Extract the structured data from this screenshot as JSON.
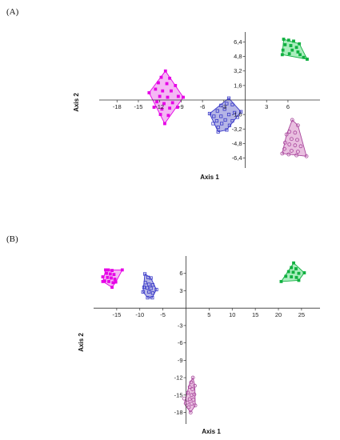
{
  "chart_data": [
    {
      "type": "scatter",
      "panel_label": "(A)",
      "xlabel": "Axis 1",
      "ylabel": "Axis 2",
      "xlim": [
        -20.5,
        10.5
      ],
      "ylim": [
        -7.5,
        7.5
      ],
      "x_ticks": [
        -18,
        -15,
        -12,
        -9,
        -6,
        -3,
        3,
        6
      ],
      "x_tick_labels": [
        "-18",
        "-15",
        "-12",
        "-9",
        "-6",
        "-3",
        "3",
        "6"
      ],
      "y_ticks": [
        6.4,
        4.8,
        3.2,
        1.6,
        -1.6,
        -3.2,
        -4.8,
        -6.4
      ],
      "y_tick_labels": [
        "6,4",
        "4,8",
        "3,2",
        "1,6",
        "-1,6",
        "-3,2",
        "-4,8",
        "-6,4"
      ],
      "grid": false,
      "series": [
        {
          "marker": "filled-square",
          "color": "#e600e6",
          "fill": "#f0a0f0",
          "hull": [
            [
              -11.2,
              3.2
            ],
            [
              -8.7,
              0.3
            ],
            [
              -11.3,
              -2.6
            ],
            [
              -13.5,
              0.8
            ]
          ],
          "points": [
            [
              -11.2,
              3.2
            ],
            [
              -11.8,
              2.5
            ],
            [
              -10.6,
              2.4
            ],
            [
              -12.2,
              1.9
            ],
            [
              -11.0,
              1.8
            ],
            [
              -9.8,
              1.6
            ],
            [
              -12.6,
              1.2
            ],
            [
              -11.6,
              1.0
            ],
            [
              -10.4,
              1.0
            ],
            [
              -13.5,
              0.8
            ],
            [
              -12.0,
              0.4
            ],
            [
              -10.9,
              0.3
            ],
            [
              -9.4,
              0.4
            ],
            [
              -8.7,
              0.3
            ],
            [
              -12.4,
              -0.2
            ],
            [
              -11.4,
              -0.4
            ],
            [
              -10.2,
              -0.3
            ],
            [
              -12.8,
              -0.8
            ],
            [
              -11.7,
              -1.0
            ],
            [
              -10.6,
              -0.9
            ],
            [
              -9.5,
              -0.8
            ],
            [
              -11.9,
              -1.6
            ],
            [
              -10.8,
              -1.7
            ],
            [
              -11.3,
              -2.6
            ]
          ]
        },
        {
          "marker": "open-square",
          "color": "#3838c8",
          "fill": "#9c9cde",
          "hull": [
            [
              -2.3,
              0.2
            ],
            [
              -0.6,
              -1.3
            ],
            [
              -2.6,
              -3.3
            ],
            [
              -3.8,
              -3.5
            ],
            [
              -5.0,
              -1.5
            ]
          ],
          "points": [
            [
              -2.3,
              0.2
            ],
            [
              -2.6,
              -0.4
            ],
            [
              -3.4,
              -0.6
            ],
            [
              -1.8,
              -0.5
            ],
            [
              -2.9,
              -1.0
            ],
            [
              -3.9,
              -1.2
            ],
            [
              -0.6,
              -1.3
            ],
            [
              -5.0,
              -1.5
            ],
            [
              -1.5,
              -1.4
            ],
            [
              -2.3,
              -1.6
            ],
            [
              -4.4,
              -1.8
            ],
            [
              -3.4,
              -1.8
            ],
            [
              -1.1,
              -1.9
            ],
            [
              -4.0,
              -2.3
            ],
            [
              -2.8,
              -2.2
            ],
            [
              -1.8,
              -2.3
            ],
            [
              -3.3,
              -2.6
            ],
            [
              -4.5,
              -2.6
            ],
            [
              -2.2,
              -2.8
            ],
            [
              -3.8,
              -3.0
            ],
            [
              -2.6,
              -3.3
            ],
            [
              -3.8,
              -3.5
            ]
          ]
        },
        {
          "marker": "filled-square",
          "color": "#10b040",
          "fill": "#8ee8a8",
          "hull": [
            [
              5.4,
              6.7
            ],
            [
              7.6,
              6.2
            ],
            [
              8.7,
              4.5
            ],
            [
              5.2,
              5.0
            ]
          ],
          "points": [
            [
              5.4,
              6.7
            ],
            [
              6.1,
              6.6
            ],
            [
              6.8,
              6.5
            ],
            [
              7.6,
              6.2
            ],
            [
              5.6,
              6.1
            ],
            [
              6.4,
              6.0
            ],
            [
              7.2,
              5.8
            ],
            [
              5.3,
              5.5
            ],
            [
              6.6,
              5.5
            ],
            [
              7.4,
              5.3
            ],
            [
              5.2,
              5.0
            ],
            [
              6.2,
              5.1
            ],
            [
              7.7,
              5.0
            ],
            [
              8.2,
              4.7
            ],
            [
              8.7,
              4.5
            ]
          ]
        },
        {
          "marker": "open-circle",
          "color": "#a8469c",
          "fill": "#e2aad6",
          "hull": [
            [
              6.6,
              -2.2
            ],
            [
              7.4,
              -2.8
            ],
            [
              8.6,
              -6.2
            ],
            [
              5.2,
              -5.9
            ],
            [
              5.8,
              -3.8
            ]
          ],
          "points": [
            [
              6.6,
              -2.2
            ],
            [
              7.4,
              -2.8
            ],
            [
              6.2,
              -3.5
            ],
            [
              7.0,
              -3.6
            ],
            [
              5.8,
              -3.8
            ],
            [
              6.5,
              -4.3
            ],
            [
              7.3,
              -4.4
            ],
            [
              5.6,
              -4.7
            ],
            [
              6.2,
              -4.9
            ],
            [
              7.0,
              -5.0
            ],
            [
              7.8,
              -5.1
            ],
            [
              5.5,
              -5.4
            ],
            [
              6.5,
              -5.6
            ],
            [
              7.4,
              -5.7
            ],
            [
              5.2,
              -5.9
            ],
            [
              6.1,
              -6.0
            ],
            [
              7.2,
              -6.1
            ],
            [
              8.6,
              -6.2
            ]
          ]
        }
      ]
    },
    {
      "type": "scatter",
      "panel_label": "(B)",
      "xlabel": "Axis 1",
      "ylabel": "Axis 2",
      "xlim": [
        -20,
        29
      ],
      "ylim": [
        -20,
        9
      ],
      "x_ticks": [
        -15,
        -10,
        -5,
        5,
        10,
        15,
        20,
        25
      ],
      "x_tick_labels": [
        "-15",
        "-10",
        "-5",
        "5",
        "10",
        "15",
        "20",
        "25"
      ],
      "y_ticks": [
        6,
        3,
        -3,
        -6,
        -9,
        -12,
        -15,
        -18
      ],
      "y_tick_labels": [
        "6",
        "3",
        "-3",
        "-6",
        "-9",
        "-12",
        "-15",
        "-18"
      ],
      "grid": false,
      "series": [
        {
          "marker": "filled-square",
          "color": "#e600e6",
          "fill": "#f0a0f0",
          "hull": [
            [
              -17.4,
              6.6
            ],
            [
              -13.8,
              6.6
            ],
            [
              -15.2,
              4.5
            ],
            [
              -16.0,
              3.6
            ],
            [
              -18.0,
              4.6
            ]
          ],
          "points": [
            [
              -17.4,
              6.6
            ],
            [
              -16.8,
              6.6
            ],
            [
              -16.0,
              6.5
            ],
            [
              -13.8,
              6.6
            ],
            [
              -17.2,
              6.0
            ],
            [
              -16.4,
              5.9
            ],
            [
              -15.6,
              5.8
            ],
            [
              -18.0,
              5.4
            ],
            [
              -17.0,
              5.3
            ],
            [
              -16.2,
              5.2
            ],
            [
              -15.4,
              5.0
            ],
            [
              -17.6,
              4.7
            ],
            [
              -16.7,
              4.6
            ],
            [
              -15.8,
              4.4
            ],
            [
              -15.2,
              4.5
            ],
            [
              -18.0,
              4.6
            ],
            [
              -16.0,
              3.6
            ]
          ]
        },
        {
          "marker": "open-square",
          "color": "#3838c8",
          "fill": "#9c9cde",
          "hull": [
            [
              -8.9,
              5.9
            ],
            [
              -7.6,
              5.2
            ],
            [
              -6.4,
              3.2
            ],
            [
              -7.3,
              1.8
            ],
            [
              -8.3,
              1.8
            ],
            [
              -9.3,
              2.8
            ]
          ],
          "points": [
            [
              -8.9,
              5.9
            ],
            [
              -8.2,
              5.3
            ],
            [
              -7.6,
              5.2
            ],
            [
              -8.8,
              4.4
            ],
            [
              -8.0,
              4.1
            ],
            [
              -7.2,
              4.0
            ],
            [
              -9.1,
              3.6
            ],
            [
              -8.4,
              3.5
            ],
            [
              -7.6,
              3.4
            ],
            [
              -6.4,
              3.2
            ],
            [
              -9.3,
              2.8
            ],
            [
              -8.0,
              2.8
            ],
            [
              -7.2,
              2.6
            ],
            [
              -8.3,
              1.8
            ],
            [
              -7.3,
              1.8
            ]
          ]
        },
        {
          "marker": "filled-square",
          "color": "#10b040",
          "fill": "#8ee8a8",
          "hull": [
            [
              23.3,
              7.8
            ],
            [
              25.6,
              6.1
            ],
            [
              24.4,
              4.8
            ],
            [
              20.6,
              4.6
            ]
          ],
          "points": [
            [
              23.3,
              7.8
            ],
            [
              22.8,
              7.0
            ],
            [
              23.8,
              6.8
            ],
            [
              22.2,
              6.3
            ],
            [
              23.2,
              6.2
            ],
            [
              24.4,
              6.0
            ],
            [
              25.6,
              6.1
            ],
            [
              21.6,
              5.5
            ],
            [
              22.8,
              5.4
            ],
            [
              23.9,
              5.3
            ],
            [
              20.6,
              4.6
            ],
            [
              24.4,
              4.8
            ]
          ]
        },
        {
          "marker": "open-circle",
          "color": "#a8469c",
          "fill": "#e2aad6",
          "hull": [
            [
              1.5,
              -12.0
            ],
            [
              1.9,
              -13.4
            ],
            [
              2.0,
              -16.8
            ],
            [
              1.0,
              -18.0
            ],
            [
              -0.4,
              -16.5
            ],
            [
              0.8,
              -13.0
            ]
          ],
          "points": [
            [
              1.5,
              -12.0
            ],
            [
              1.1,
              -12.8
            ],
            [
              1.9,
              -13.4
            ],
            [
              0.8,
              -13.6
            ],
            [
              1.4,
              -14.0
            ],
            [
              0.4,
              -14.6
            ],
            [
              1.2,
              -15.0
            ],
            [
              1.8,
              -14.9
            ],
            [
              -0.4,
              -15.6
            ],
            [
              0.8,
              -15.7
            ],
            [
              1.6,
              -15.8
            ],
            [
              0.3,
              -16.3
            ],
            [
              1.2,
              -16.5
            ],
            [
              2.0,
              -16.8
            ],
            [
              0.6,
              -17.1
            ],
            [
              1.0,
              -18.0
            ]
          ]
        }
      ]
    }
  ]
}
